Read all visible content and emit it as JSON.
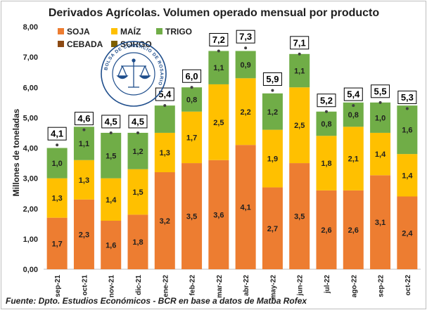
{
  "chart_data": {
    "type": "bar",
    "stacked": true,
    "title": "Derivados Agrícolas. Volumen operado mensual por producto",
    "ylabel": "Millones de toneladas",
    "xlabel": "",
    "ylim": [
      0,
      8
    ],
    "yticks": [
      "0,00",
      "1,00",
      "2,00",
      "3,00",
      "4,00",
      "5,00",
      "6,00",
      "7,00",
      "8,00"
    ],
    "categories": [
      "sep-21",
      "oct-21",
      "nov-21",
      "dic-21",
      "ene-22",
      "feb-22",
      "mar-22",
      "abr-22",
      "may-22",
      "jun-22",
      "jul-22",
      "ago-22",
      "sep-22",
      "oct-22"
    ],
    "series": [
      {
        "name": "SOJA",
        "color": "#ed7d31",
        "values": [
          1.7,
          2.3,
          1.6,
          1.8,
          3.2,
          3.5,
          3.6,
          4.1,
          2.7,
          3.5,
          2.6,
          2.6,
          3.1,
          2.4
        ],
        "labels": [
          "1,7",
          "2,3",
          "1,6",
          "1,8",
          "3,2",
          "3,5",
          "3,6",
          "4,1",
          "2,7",
          "3,5",
          "2,6",
          "2,6",
          "3,1",
          "2,4"
        ]
      },
      {
        "name": "MAÍZ",
        "color": "#ffc000",
        "values": [
          1.3,
          1.3,
          1.4,
          1.5,
          1.3,
          1.7,
          2.5,
          2.2,
          1.9,
          2.5,
          1.8,
          2.1,
          1.4,
          1.4
        ],
        "labels": [
          "1,3",
          "1,3",
          "1,4",
          "1,5",
          "1,3",
          "1,7",
          "2,5",
          "2,2",
          "1,9",
          "2,5",
          "1,8",
          "2,1",
          "1,4",
          "1,4"
        ]
      },
      {
        "name": "TRIGO",
        "color": "#70ad47",
        "values": [
          1.0,
          1.1,
          1.5,
          1.2,
          0.9,
          0.8,
          1.1,
          0.9,
          1.2,
          1.1,
          0.8,
          0.8,
          1.0,
          1.6
        ],
        "labels": [
          "1,0",
          "1,1",
          "1,5",
          "1,2",
          "",
          "0,8",
          "1,1",
          "0,9",
          "1,2",
          "1,1",
          "0,8",
          "0,8",
          "1,0",
          "1,6"
        ]
      },
      {
        "name": "CEBADA",
        "color": "#8c4a14",
        "values": [
          0,
          0,
          0,
          0,
          0,
          0,
          0,
          0,
          0,
          0,
          0,
          0,
          0,
          0
        ]
      },
      {
        "name": "SORGO",
        "color": "#7f6000",
        "values": [
          0,
          0,
          0,
          0,
          0,
          0,
          0,
          0,
          0,
          0,
          0,
          0,
          0,
          0
        ]
      }
    ],
    "totals": [
      4.1,
      4.6,
      4.5,
      4.5,
      5.4,
      6.0,
      7.2,
      7.3,
      5.9,
      7.1,
      5.2,
      5.4,
      5.5,
      5.3
    ],
    "total_labels": [
      "4,1",
      "4,6",
      "4,5",
      "4,5",
      "5,4",
      "6,0",
      "7,2",
      "7,3",
      "5,9",
      "7,1",
      "5,2",
      "5,4",
      "5,5",
      "5,3"
    ],
    "grid": false,
    "legend_position": "top-left"
  },
  "seal": {
    "text": "BOLSA DE COMERCIO DE ROSARIO",
    "color": "#1f4e8c"
  },
  "source": "Fuente: Dpto. Estudios Económicos - BCR en base a datos de Matba Rofex"
}
